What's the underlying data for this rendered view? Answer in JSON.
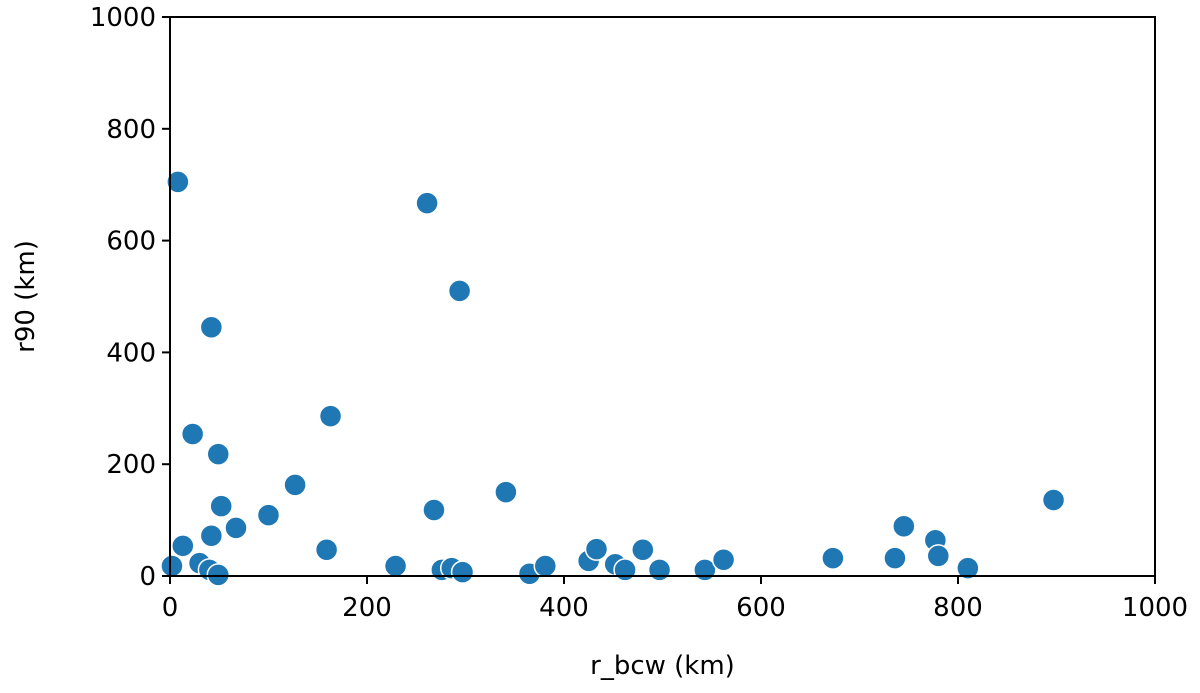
{
  "chart_data": {
    "type": "scatter",
    "x_label": "r_bcw (km)",
    "y_label": "r90 (km)",
    "xlim": [
      0,
      1000
    ],
    "ylim": [
      0,
      1000
    ],
    "xticks": [
      0,
      200,
      400,
      600,
      800,
      1000
    ],
    "yticks": [
      0,
      200,
      400,
      600,
      800,
      1000
    ],
    "color": "#1f77b4",
    "x": [
      8,
      261,
      294,
      42,
      163,
      23,
      49,
      341,
      127,
      52,
      268,
      100,
      67,
      42,
      13,
      159,
      30,
      40,
      49,
      2,
      229,
      276,
      286,
      297,
      365,
      381,
      425,
      433,
      452,
      462,
      480,
      497,
      543,
      562,
      673,
      736,
      745,
      777,
      780,
      810,
      897
    ],
    "y": [
      705,
      667,
      510,
      445,
      286,
      254,
      218,
      150,
      163,
      125,
      118,
      109,
      86,
      72,
      54,
      47,
      23,
      11,
      2,
      18,
      18,
      11,
      14,
      7,
      4,
      18,
      27,
      48,
      21,
      11,
      47,
      11,
      11,
      29,
      32,
      32,
      89,
      64,
      36,
      14,
      136
    ]
  }
}
